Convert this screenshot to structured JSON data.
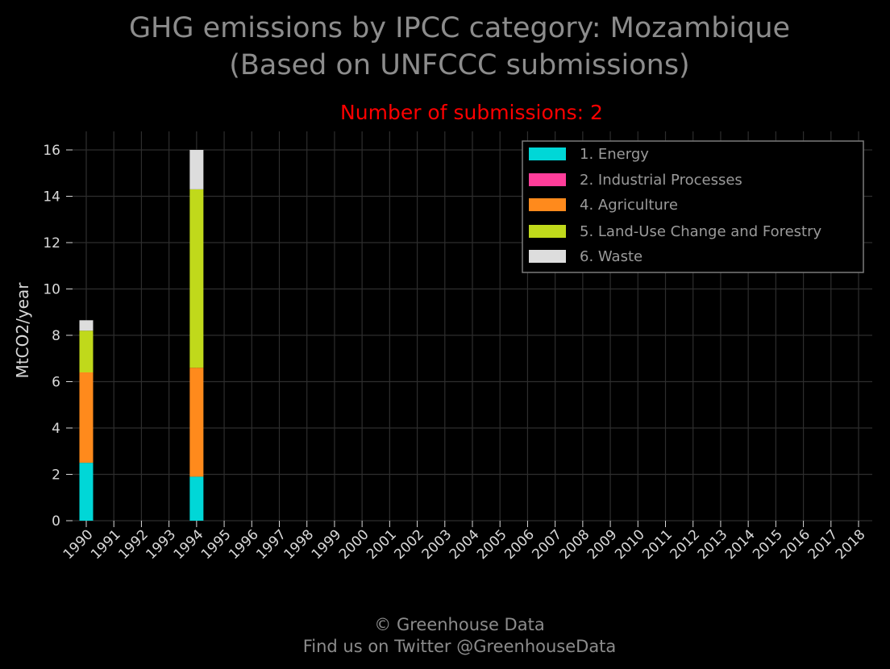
{
  "chart_data": {
    "type": "bar",
    "stacked": true,
    "title": "GHG emissions by IPCC category: Mozambique",
    "title_line2": "(Based on UNFCCC submissions)",
    "subtitle": "Number of submissions: 2",
    "xlabel": "",
    "ylabel": "MtCO2/year",
    "ylim": [
      0,
      16.8
    ],
    "yticks": [
      0,
      2,
      4,
      6,
      8,
      10,
      12,
      14,
      16
    ],
    "grid": true,
    "legend_position": "top-right",
    "categories": [
      "1990",
      "1991",
      "1992",
      "1993",
      "1994",
      "1995",
      "1996",
      "1997",
      "1998",
      "1999",
      "2000",
      "2001",
      "2002",
      "2003",
      "2004",
      "2005",
      "2006",
      "2007",
      "2008",
      "2009",
      "2010",
      "2011",
      "2012",
      "2013",
      "2014",
      "2015",
      "2016",
      "2017",
      "2018"
    ],
    "series": [
      {
        "name": "1. Energy",
        "color": "#00d7d7",
        "values": [
          2.5,
          null,
          null,
          null,
          1.9,
          null,
          null,
          null,
          null,
          null,
          null,
          null,
          null,
          null,
          null,
          null,
          null,
          null,
          null,
          null,
          null,
          null,
          null,
          null,
          null,
          null,
          null,
          null,
          null
        ]
      },
      {
        "name": "2. Industrial Processes",
        "color": "#ff3d9a",
        "values": [
          0.0,
          null,
          null,
          null,
          0.0,
          null,
          null,
          null,
          null,
          null,
          null,
          null,
          null,
          null,
          null,
          null,
          null,
          null,
          null,
          null,
          null,
          null,
          null,
          null,
          null,
          null,
          null,
          null,
          null
        ]
      },
      {
        "name": "4. Agriculture",
        "color": "#ff8a1c",
        "values": [
          3.9,
          null,
          null,
          null,
          4.7,
          null,
          null,
          null,
          null,
          null,
          null,
          null,
          null,
          null,
          null,
          null,
          null,
          null,
          null,
          null,
          null,
          null,
          null,
          null,
          null,
          null,
          null,
          null,
          null
        ]
      },
      {
        "name": "5. Land-Use Change and Forestry",
        "color": "#c0d91b",
        "values": [
          1.8,
          null,
          null,
          null,
          7.7,
          null,
          null,
          null,
          null,
          null,
          null,
          null,
          null,
          null,
          null,
          null,
          null,
          null,
          null,
          null,
          null,
          null,
          null,
          null,
          null,
          null,
          null,
          null,
          null
        ]
      },
      {
        "name": "6. Waste",
        "color": "#dddddd",
        "values": [
          0.45,
          null,
          null,
          null,
          1.7,
          null,
          null,
          null,
          null,
          null,
          null,
          null,
          null,
          null,
          null,
          null,
          null,
          null,
          null,
          null,
          null,
          null,
          null,
          null,
          null,
          null,
          null,
          null,
          null
        ]
      }
    ]
  },
  "footer": {
    "copyright": "© Greenhouse Data",
    "twitter": "Find us on Twitter @GreenhouseData"
  }
}
